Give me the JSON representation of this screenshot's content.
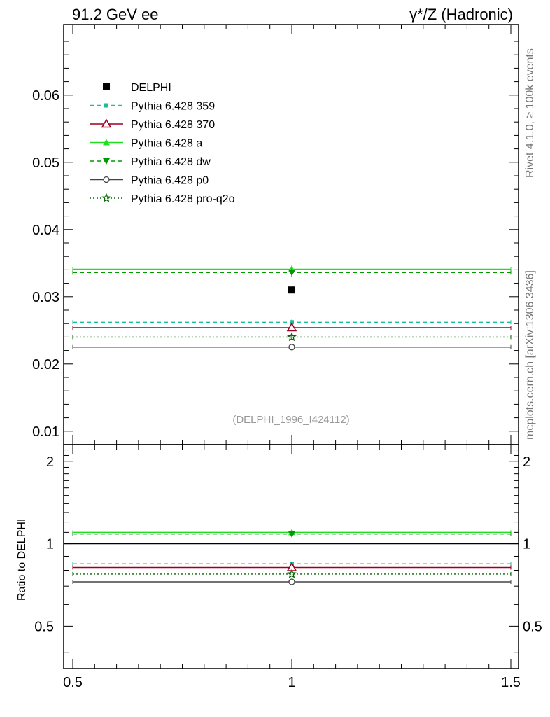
{
  "chart_data": {
    "type": "line",
    "title_left": "91.2 GeV ee",
    "title_right": "γ*/Z (Hadronic)",
    "side_label_top": "Rivet 4.1.0, ≥ 100k events",
    "side_label_bottom": "mcplots.cern.ch [arXiv:1306.3436]",
    "analysis_label": "(DELPHI_1996_I424112)",
    "x_ticks": [
      "0.5",
      "1",
      "1.5"
    ],
    "xlim": [
      0.5,
      1.5
    ],
    "main_ylim": [
      0.008,
      0.0705
    ],
    "main_y_ticks": [
      "0.01",
      "0.02",
      "0.03",
      "0.04",
      "0.05",
      "0.06"
    ],
    "main_y_tick_values": [
      0.01,
      0.02,
      0.03,
      0.04,
      0.05,
      0.06
    ],
    "ratio_ylim": [
      0.35,
      2.3
    ],
    "ratio_y_ticks": [
      "0.5",
      "1",
      "2"
    ],
    "ratio_y_tick_values": [
      0.5,
      1,
      2
    ],
    "ratio_ylabel": "Ratio to DELPHI",
    "data": {
      "name": "DELPHI",
      "x": 1.0,
      "y": 0.031,
      "color": "#000000"
    },
    "series": [
      {
        "name": "Pythia 6.428 359",
        "x": [
          0.5,
          1.5
        ],
        "value": 0.0262,
        "err": 0.0004,
        "ratio": 0.845,
        "color": "#1abc9c",
        "dash": "6,4",
        "marker": "square-small"
      },
      {
        "name": "Pythia 6.428 370",
        "x": [
          0.5,
          1.5
        ],
        "value": 0.0254,
        "err": 0.0004,
        "ratio": 0.819,
        "color": "#990022",
        "dash": "",
        "marker": "triangle-open"
      },
      {
        "name": "Pythia 6.428 a",
        "x": [
          0.5,
          1.5
        ],
        "value": 0.0341,
        "err": 0.0006,
        "ratio": 1.1,
        "color": "#22dd22",
        "dash": "",
        "marker": "triangle-filled"
      },
      {
        "name": "Pythia 6.428 dw",
        "x": [
          0.5,
          1.5
        ],
        "value": 0.0336,
        "err": 0.0006,
        "ratio": 1.085,
        "color": "#009900",
        "dash": "6,4",
        "marker": "triangle-down-filled"
      },
      {
        "name": "Pythia 6.428 p0",
        "x": [
          0.5,
          1.5
        ],
        "value": 0.0225,
        "err": 0.0003,
        "ratio": 0.726,
        "color": "#444444",
        "dash": "",
        "marker": "circle-open"
      },
      {
        "name": "Pythia 6.428 pro-q2o",
        "x": [
          0.5,
          1.5
        ],
        "value": 0.024,
        "err": 0.0003,
        "ratio": 0.775,
        "color": "#006600",
        "dash": "2,3",
        "marker": "star-open"
      }
    ]
  }
}
